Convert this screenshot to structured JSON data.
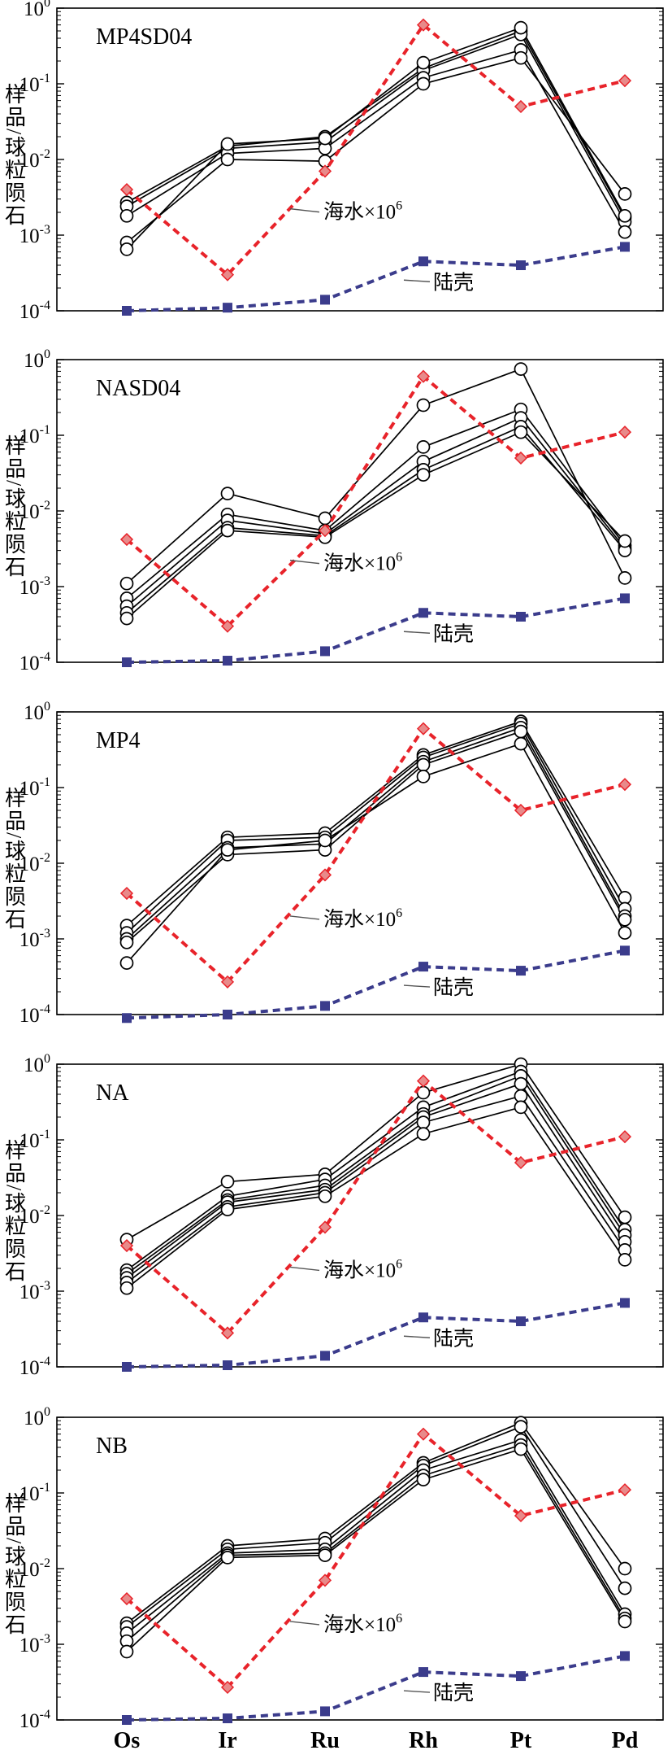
{
  "chart_data": [
    {
      "type": "line",
      "title": "MP4SD04",
      "ylabel": "样品/球粒陨石",
      "yscale": "log",
      "ylim": [
        0.0001,
        1
      ],
      "ytick_labels": [
        {
          "base": "10",
          "exp": "0"
        },
        {
          "base": "10",
          "exp": "-1"
        },
        {
          "base": "10",
          "exp": "-2"
        },
        {
          "base": "10",
          "exp": "-3"
        },
        {
          "base": "10",
          "exp": "-4"
        }
      ],
      "categories": [
        "Os",
        "Ir",
        "Ru",
        "Rh",
        "Pt",
        "Pd"
      ],
      "samples": [
        [
          0.0027,
          0.015,
          0.02,
          0.16,
          0.5,
          0.0017
        ],
        [
          0.0024,
          0.014,
          0.017,
          0.15,
          0.45,
          0.0015
        ],
        [
          0.0018,
          0.012,
          0.014,
          0.12,
          0.28,
          0.0011
        ],
        [
          0.0008,
          0.01,
          0.0095,
          0.1,
          0.22,
          0.0035
        ],
        [
          0.00065,
          0.016,
          0.019,
          0.19,
          0.55,
          0.0018
        ]
      ],
      "series": [
        {
          "name": "海水×10⁶",
          "label_main": "海水×10",
          "label_sup": "6",
          "color": "#e8232a",
          "marker_color": "#e88a8a",
          "values": [
            0.004,
            0.0003,
            0.007,
            0.6,
            0.05,
            0.11
          ]
        },
        {
          "name": "陆壳",
          "label_main": "陆壳",
          "label_sup": "",
          "color": "#3b3c8c",
          "marker_color": "#3b3c8c",
          "values": [
            0.0001,
            0.00011,
            0.00014,
            0.00045,
            0.0004,
            0.0007
          ]
        }
      ]
    },
    {
      "type": "line",
      "title": "NASD04",
      "ylabel": "样品/球粒陨石",
      "yscale": "log",
      "ylim": [
        0.0001,
        1
      ],
      "ytick_labels": [
        {
          "base": "10",
          "exp": "0"
        },
        {
          "base": "10",
          "exp": "-1"
        },
        {
          "base": "10",
          "exp": "-2"
        },
        {
          "base": "10",
          "exp": "-3"
        },
        {
          "base": "10",
          "exp": "-4"
        }
      ],
      "categories": [
        "Os",
        "Ir",
        "Ru",
        "Rh",
        "Pt",
        "Pd"
      ],
      "samples": [
        [
          0.0011,
          0.017,
          0.008,
          0.25,
          0.75,
          0.0013
        ],
        [
          0.0007,
          0.009,
          0.0055,
          0.07,
          0.22,
          0.0035
        ],
        [
          0.00055,
          0.0075,
          0.005,
          0.045,
          0.17,
          0.0032
        ],
        [
          0.00045,
          0.006,
          0.0047,
          0.035,
          0.13,
          0.003
        ],
        [
          0.00038,
          0.0055,
          0.0045,
          0.03,
          0.11,
          0.004
        ]
      ],
      "series": [
        {
          "name": "海水×10⁶",
          "label_main": "海水×10",
          "label_sup": "6",
          "color": "#e8232a",
          "marker_color": "#e88a8a",
          "values": [
            0.0042,
            0.0003,
            0.0055,
            0.6,
            0.05,
            0.11
          ]
        },
        {
          "name": "陆壳",
          "label_main": "陆壳",
          "label_sup": "",
          "color": "#3b3c8c",
          "marker_color": "#3b3c8c",
          "values": [
            0.0001,
            0.000105,
            0.00014,
            0.00045,
            0.0004,
            0.0007
          ]
        }
      ]
    },
    {
      "type": "line",
      "title": "MP4",
      "ylabel": "样品/球粒陨石",
      "yscale": "log",
      "ylim": [
        0.0001,
        1
      ],
      "ytick_labels": [
        {
          "base": "10",
          "exp": "0"
        },
        {
          "base": "10",
          "exp": "-1"
        },
        {
          "base": "10",
          "exp": "-2"
        },
        {
          "base": "10",
          "exp": "-3"
        },
        {
          "base": "10",
          "exp": "-4"
        }
      ],
      "categories": [
        "Os",
        "Ir",
        "Ru",
        "Rh",
        "Pt",
        "Pd"
      ],
      "samples": [
        [
          0.0015,
          0.022,
          0.025,
          0.27,
          0.75,
          0.0035
        ],
        [
          0.0012,
          0.02,
          0.022,
          0.25,
          0.7,
          0.0025
        ],
        [
          0.001,
          0.016,
          0.018,
          0.22,
          0.62,
          0.002
        ],
        [
          0.0009,
          0.013,
          0.015,
          0.2,
          0.55,
          0.0018
        ],
        [
          0.00048,
          0.015,
          0.02,
          0.14,
          0.38,
          0.0012
        ]
      ],
      "series": [
        {
          "name": "海水×10⁶",
          "label_main": "海水×10",
          "label_sup": "6",
          "color": "#e8232a",
          "marker_color": "#e88a8a",
          "values": [
            0.004,
            0.00027,
            0.007,
            0.6,
            0.05,
            0.11
          ]
        },
        {
          "name": "陆壳",
          "label_main": "陆壳",
          "label_sup": "",
          "color": "#3b3c8c",
          "marker_color": "#3b3c8c",
          "values": [
            9e-05,
            0.0001,
            0.00013,
            0.00043,
            0.00038,
            0.0007
          ]
        }
      ]
    },
    {
      "type": "line",
      "title": "NA",
      "ylabel": "样品/球粒陨石",
      "yscale": "log",
      "ylim": [
        0.0001,
        1
      ],
      "ytick_labels": [
        {
          "base": "10",
          "exp": "0"
        },
        {
          "base": "10",
          "exp": "-1"
        },
        {
          "base": "10",
          "exp": "-2"
        },
        {
          "base": "10",
          "exp": "-3"
        },
        {
          "base": "10",
          "exp": "-4"
        }
      ],
      "categories": [
        "Os",
        "Ir",
        "Ru",
        "Rh",
        "Pt",
        "Pd"
      ],
      "samples": [
        [
          0.0048,
          0.028,
          0.035,
          0.42,
          1.0,
          0.0095
        ],
        [
          0.0019,
          0.018,
          0.03,
          0.27,
          0.8,
          0.0065
        ],
        [
          0.0017,
          0.016,
          0.025,
          0.22,
          0.7,
          0.0055
        ],
        [
          0.0015,
          0.015,
          0.022,
          0.2,
          0.55,
          0.0045
        ],
        [
          0.0013,
          0.013,
          0.02,
          0.17,
          0.38,
          0.0035
        ],
        [
          0.0011,
          0.012,
          0.018,
          0.12,
          0.27,
          0.0026
        ]
      ],
      "series": [
        {
          "name": "海水×10⁶",
          "label_main": "海水×10",
          "label_sup": "6",
          "color": "#e8232a",
          "marker_color": "#e88a8a",
          "values": [
            0.004,
            0.00028,
            0.007,
            0.6,
            0.05,
            0.11
          ]
        },
        {
          "name": "陆壳",
          "label_main": "陆壳",
          "label_sup": "",
          "color": "#3b3c8c",
          "marker_color": "#3b3c8c",
          "values": [
            0.0001,
            0.000105,
            0.00014,
            0.00045,
            0.0004,
            0.0007
          ]
        }
      ]
    },
    {
      "type": "line",
      "title": "NB",
      "ylabel": "样品/球粒陨石",
      "yscale": "log",
      "ylim": [
        0.0001,
        1
      ],
      "ytick_labels": [
        {
          "base": "10",
          "exp": "0"
        },
        {
          "base": "10",
          "exp": "-1"
        },
        {
          "base": "10",
          "exp": "-2"
        },
        {
          "base": "10",
          "exp": "-3"
        },
        {
          "base": "10",
          "exp": "-4"
        }
      ],
      "categories": [
        "Os",
        "Ir",
        "Ru",
        "Rh",
        "Pt",
        "Pd"
      ],
      "samples": [
        [
          0.0019,
          0.02,
          0.025,
          0.25,
          0.85,
          0.01
        ],
        [
          0.0017,
          0.018,
          0.022,
          0.23,
          0.75,
          0.0055
        ],
        [
          0.0014,
          0.016,
          0.018,
          0.2,
          0.5,
          0.0025
        ],
        [
          0.0011,
          0.015,
          0.016,
          0.17,
          0.43,
          0.0022
        ],
        [
          0.0008,
          0.014,
          0.015,
          0.15,
          0.38,
          0.002
        ]
      ],
      "series": [
        {
          "name": "海水×10⁶",
          "label_main": "海水×10",
          "label_sup": "6",
          "color": "#e8232a",
          "marker_color": "#e88a8a",
          "values": [
            0.004,
            0.00027,
            0.007,
            0.6,
            0.05,
            0.11
          ]
        },
        {
          "name": "陆壳",
          "label_main": "陆壳",
          "label_sup": "",
          "color": "#3b3c8c",
          "marker_color": "#3b3c8c",
          "values": [
            0.0001,
            0.000105,
            0.00013,
            0.00043,
            0.00038,
            0.0007
          ]
        }
      ]
    }
  ]
}
